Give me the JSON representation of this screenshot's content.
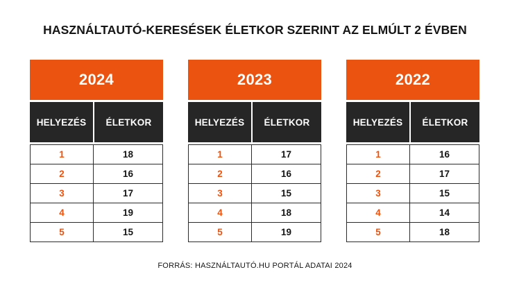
{
  "title": "HASZNÁLTAUTÓ-KERESÉSEK ÉLETKOR SZERINT AZ ELMÚLT 2 ÉVBEN",
  "columns": {
    "rank": "HELYEZÉS",
    "age": "ÉLETKOR"
  },
  "colors": {
    "accent": "#EA5310",
    "dark_header": "#262626"
  },
  "tables": [
    {
      "year": "2024",
      "rows": [
        {
          "rank": "1",
          "age": "18"
        },
        {
          "rank": "2",
          "age": "16"
        },
        {
          "rank": "3",
          "age": "17"
        },
        {
          "rank": "4",
          "age": "19"
        },
        {
          "rank": "5",
          "age": "15"
        }
      ]
    },
    {
      "year": "2023",
      "rows": [
        {
          "rank": "1",
          "age": "17"
        },
        {
          "rank": "2",
          "age": "16"
        },
        {
          "rank": "3",
          "age": "15"
        },
        {
          "rank": "4",
          "age": "18"
        },
        {
          "rank": "5",
          "age": "19"
        }
      ]
    },
    {
      "year": "2022",
      "rows": [
        {
          "rank": "1",
          "age": "16"
        },
        {
          "rank": "2",
          "age": "17"
        },
        {
          "rank": "3",
          "age": "15"
        },
        {
          "rank": "4",
          "age": "14"
        },
        {
          "rank": "5",
          "age": "18"
        }
      ]
    }
  ],
  "source": "FORRÁS: HASZNÁLTAUTÓ.HU PORTÁL ADATAI 2024"
}
